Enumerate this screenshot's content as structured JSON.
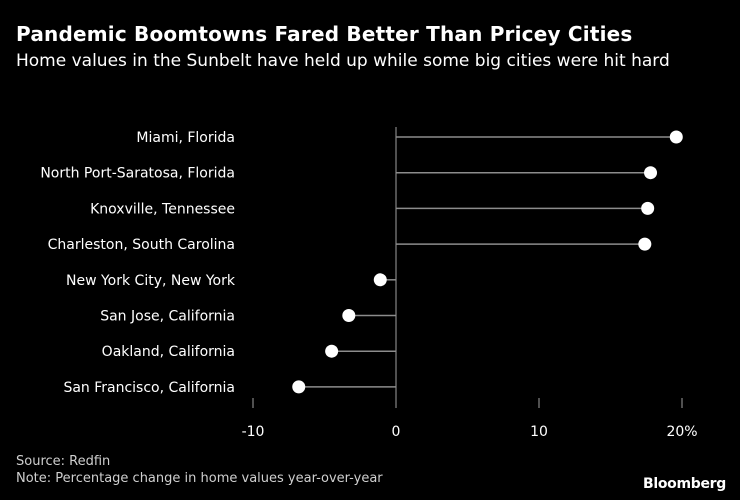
{
  "title": "Pandemic Boomtowns Fared Better Than Pricey Cities",
  "subtitle": "Home values in the Sunbelt have held up while some big cities were hit hard",
  "chart_data": {
    "type": "lollipop",
    "categories": [
      "Miami, Florida",
      "North Port-Saratosa, Florida",
      "Knoxville, Tennessee",
      "Charleston, South Carolina",
      "New York City, New York",
      "San Jose, California",
      "Oakland, California",
      "San Francisco, California"
    ],
    "values": [
      19.6,
      17.8,
      17.6,
      17.4,
      -1.1,
      -3.3,
      -4.5,
      -6.8
    ],
    "xlim": [
      -10,
      20
    ],
    "xticks": [
      -10,
      0,
      10,
      20
    ],
    "xtick_labels": [
      "-10",
      "0",
      "10",
      "20%"
    ],
    "xlabel": "",
    "ylabel": ""
  },
  "footer": {
    "source": "Source: Redfin",
    "note": "Note: Percentage change in home values year-over-year"
  },
  "brand": "Bloomberg",
  "colors": {
    "background": "#000000",
    "text": "#ffffff",
    "stem": "#8c8c8c",
    "axis": "#a0a0a0",
    "dot": "#ffffff"
  }
}
